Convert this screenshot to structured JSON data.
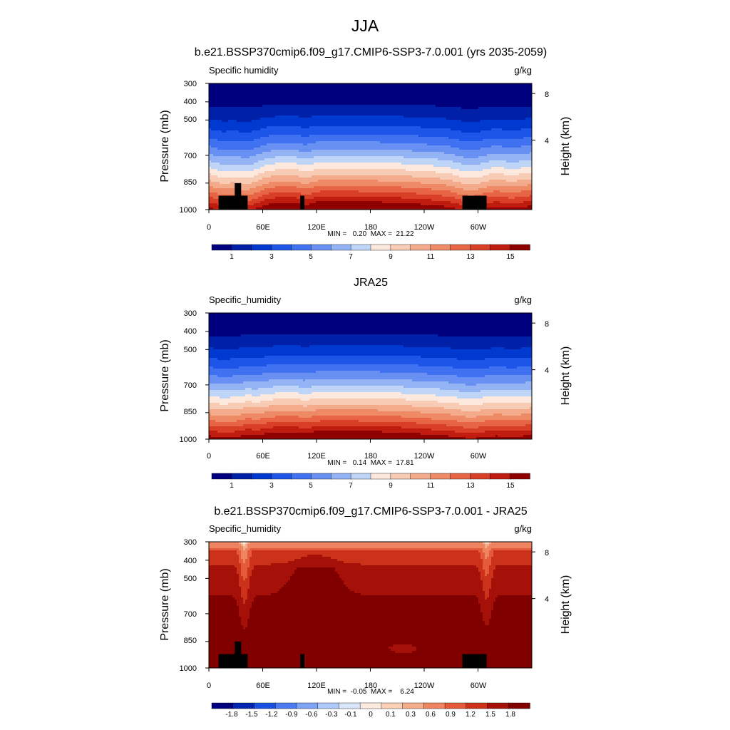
{
  "figure": {
    "title": "JJA"
  },
  "colormaps": {
    "abs": [
      "#00007f",
      "#0020a8",
      "#0039cf",
      "#1d55e8",
      "#3f71f0",
      "#6890f2",
      "#93b3f5",
      "#bed5f8",
      "#fce8dc",
      "#f8cbb4",
      "#f4ab8c",
      "#ee8a66",
      "#e76444",
      "#d93e27",
      "#c01c10",
      "#8f0000"
    ],
    "diff": [
      "#00007f",
      "#0026b0",
      "#1a50e0",
      "#4a7bf0",
      "#7ea3f4",
      "#aec8f7",
      "#d8e5fa",
      "#fdebe0",
      "#f9cfb6",
      "#f4ad8b",
      "#ee8460",
      "#e45b3b",
      "#cc3219",
      "#a51008",
      "#800000"
    ]
  },
  "chart_data": [
    {
      "type": "heatmap",
      "title": "b.e21.BSSP370cmip6.f09_g17.CMIP6-SSP3-7.0.001 (yrs 2035-2059)",
      "left_label": "Specific humidity",
      "right_label": "g/kg",
      "ylabel": "Pressure (mb)",
      "ylabel_right": "Height (km)",
      "xticks": [
        "0",
        "60E",
        "120E",
        "180",
        "120W",
        "60W"
      ],
      "yticks": [
        "300",
        "400",
        "500",
        "700",
        "850",
        "1000"
      ],
      "yticks_right": [
        "8",
        "4"
      ],
      "min_max": "MIN =   0.20  MAX =  21.22",
      "colorbar_labels": [
        "1",
        "3",
        "5",
        "7",
        "9",
        "11",
        "13",
        "15"
      ],
      "colormap": "abs",
      "vmin": 0,
      "vmax": 16,
      "topography": true
    },
    {
      "type": "heatmap",
      "title": "JRA25",
      "left_label": "Specific_humidity",
      "right_label": "g/kg",
      "ylabel": "Pressure (mb)",
      "ylabel_right": "Height (km)",
      "xticks": [
        "0",
        "60E",
        "120E",
        "180",
        "120W",
        "60W"
      ],
      "yticks": [
        "300",
        "400",
        "500",
        "700",
        "850",
        "1000"
      ],
      "yticks_right": [
        "8",
        "4"
      ],
      "min_max": "MIN =   0.14  MAX =  17.81",
      "colorbar_labels": [
        "1",
        "3",
        "5",
        "7",
        "9",
        "11",
        "13",
        "15"
      ],
      "colormap": "abs",
      "vmin": 0,
      "vmax": 16,
      "topography": false
    },
    {
      "type": "heatmap",
      "title": "b.e21.BSSP370cmip6.f09_g17.CMIP6-SSP3-7.0.001 - JRA25",
      "left_label": "Specific_humidity",
      "right_label": "g/kg",
      "ylabel": "Pressure (mb)",
      "ylabel_right": "Height (km)",
      "xticks": [
        "0",
        "60E",
        "120E",
        "180",
        "120W",
        "60W"
      ],
      "yticks": [
        "300",
        "400",
        "500",
        "700",
        "850",
        "1000"
      ],
      "yticks_right": [
        "8",
        "4"
      ],
      "min_max": "MIN =  -0.05  MAX =    6.24",
      "colorbar_labels": [
        "-1.8",
        "-1.5",
        "-1.2",
        "-0.9",
        "-0.6",
        "-0.3",
        "-0.1",
        "0",
        "0.1",
        "0.3",
        "0.6",
        "0.9",
        "1.2",
        "1.5",
        "1.8"
      ],
      "colormap": "diff",
      "topography": true
    }
  ]
}
